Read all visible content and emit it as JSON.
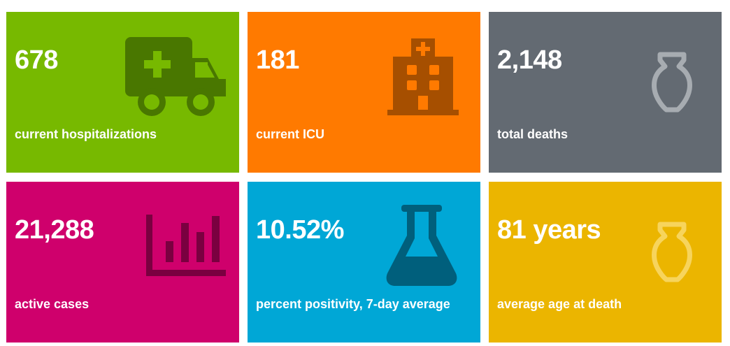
{
  "tiles": [
    {
      "value": "678",
      "label": "current hospitalizations",
      "color": "#77b900",
      "icon": "ambulance-icon"
    },
    {
      "value": "181",
      "label": "current ICU",
      "color": "#ff7a00",
      "icon": "hospital-icon"
    },
    {
      "value": "2,148",
      "label": "total deaths",
      "color": "#636a72",
      "icon": "urn-icon"
    },
    {
      "value": "21,288",
      "label": "active cases",
      "color": "#cf006c",
      "icon": "bar-chart-icon"
    },
    {
      "value": "10.52%",
      "label": "percent positivity, 7-day average",
      "color": "#00a7d6",
      "icon": "flask-icon"
    },
    {
      "value": "81 years",
      "label": "average age at death",
      "color": "#ebb500",
      "icon": "urn-icon"
    }
  ]
}
